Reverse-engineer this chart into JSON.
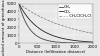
{
  "title": "",
  "xlabel": "Distance (Infiltration distance)",
  "ylabel": "Dissolved amount of greenhouse gases",
  "xlim": [
    0,
    2000
  ],
  "ylim": [
    0,
    5000
  ],
  "x_ticks": [
    0,
    500,
    1000,
    1500,
    2000
  ],
  "y_ticks": [
    0,
    1000,
    2000,
    3000,
    4000,
    5000
  ],
  "lines": [
    {
      "label": "CH₄",
      "color": "#444444",
      "style": "-",
      "lw": 0.6,
      "decay": 0.0035
    },
    {
      "label": "CO₂",
      "color": "#222222",
      "style": "-",
      "lw": 0.6,
      "decay": 0.0018
    },
    {
      "label": "- - CH₂ClCH₂Cl",
      "color": "#777777",
      "style": "--",
      "lw": 0.5,
      "decay": 0.0007
    }
  ],
  "legend_fontsize": 2.8,
  "tick_fontsize": 2.8,
  "label_fontsize": 2.8,
  "bg_color": "#e8e8e8",
  "grid_color": "#ffffff",
  "initial_value": 5000
}
